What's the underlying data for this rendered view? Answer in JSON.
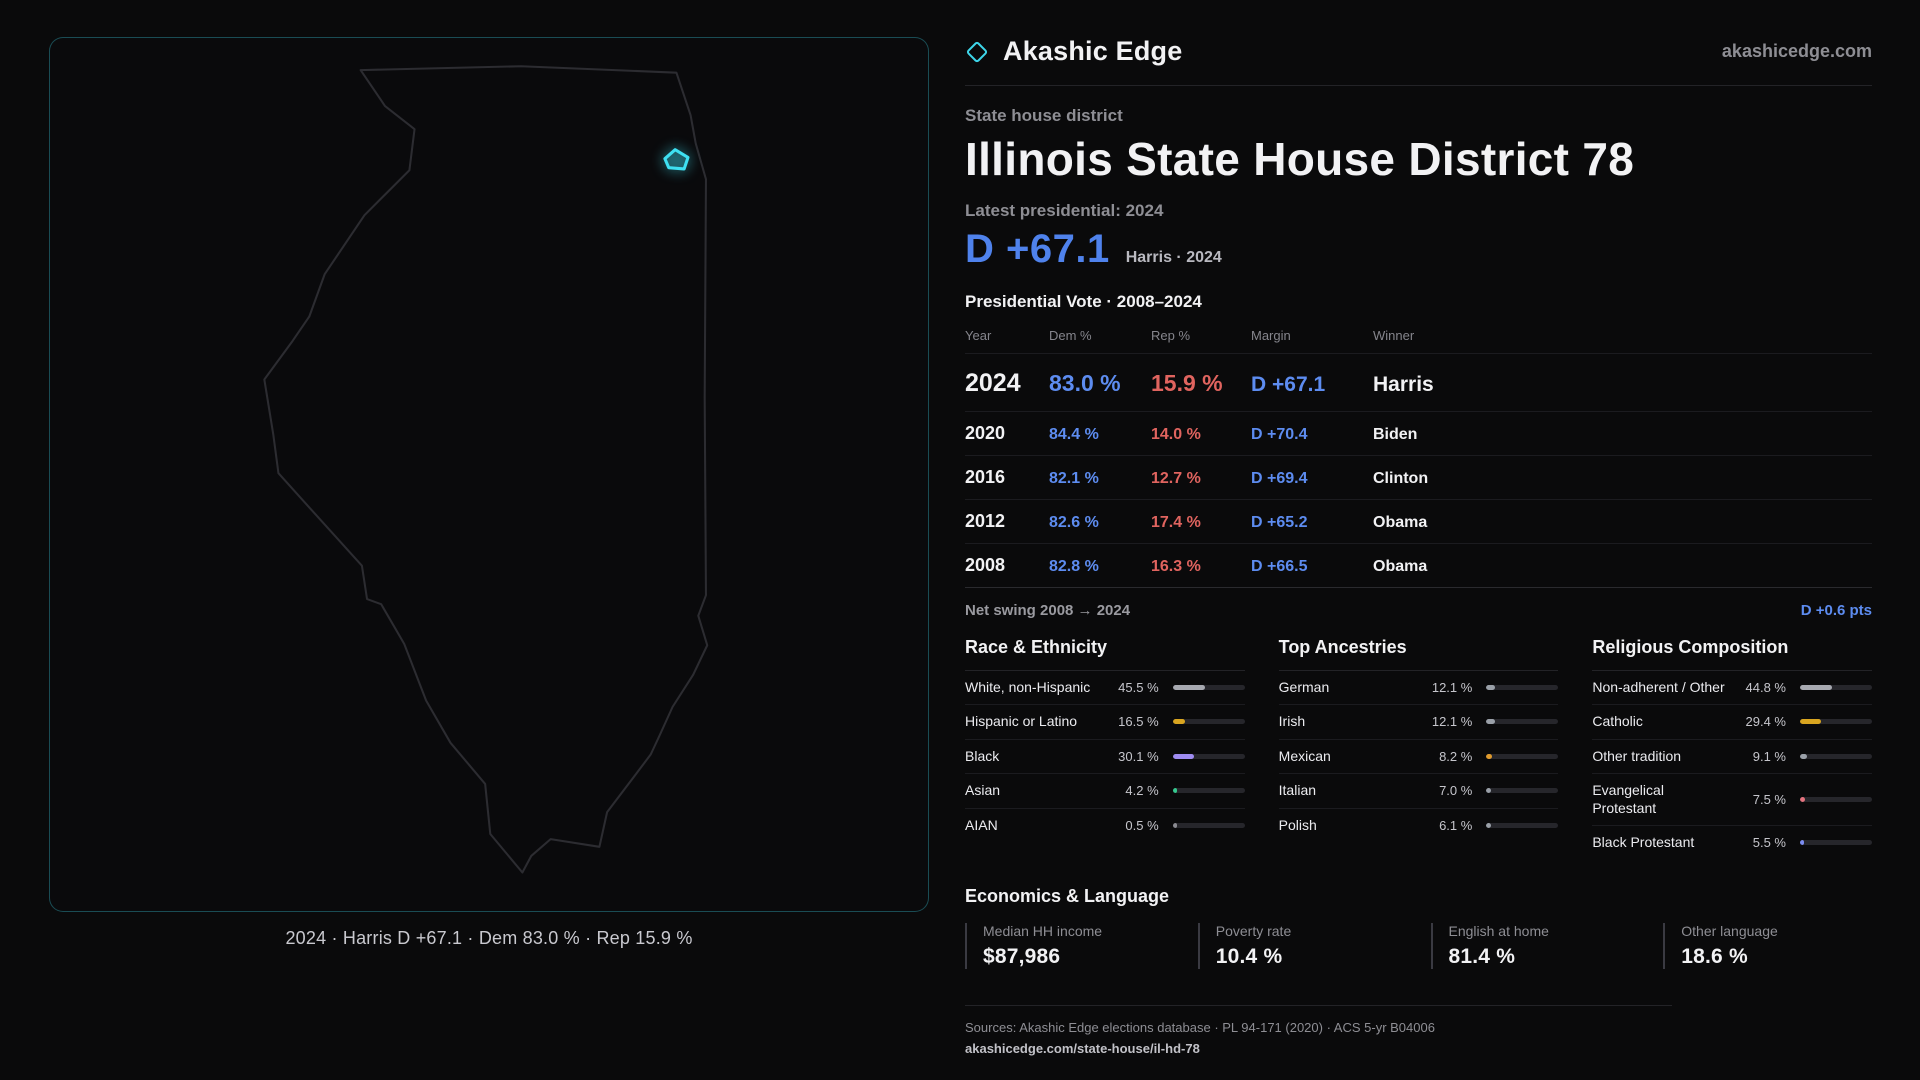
{
  "brand": {
    "name": "Akashic Edge",
    "site": "akashicedge.com"
  },
  "map": {
    "caption": "2024 · Harris D +67.1 · Dem 83.0 % · Rep 15.9 %",
    "highlight_name": "district-78-highlight"
  },
  "page": {
    "eyebrow": "State house district",
    "title": "Illinois State House District 78",
    "latest_label": "Latest presidential: 2024",
    "margin_big": "D +67.1",
    "margin_context": "Harris · 2024",
    "table_title": "Presidential Vote · 2008–2024"
  },
  "vote_table": {
    "columns": [
      "Year",
      "Dem %",
      "Rep %",
      "Margin",
      "Winner"
    ],
    "rows": [
      {
        "year": "2024",
        "dem": "83.0 %",
        "rep": "15.9 %",
        "margin": "D +67.1",
        "winner": "Harris",
        "featured": true
      },
      {
        "year": "2020",
        "dem": "84.4 %",
        "rep": "14.0 %",
        "margin": "D +70.4",
        "winner": "Biden",
        "featured": false
      },
      {
        "year": "2016",
        "dem": "82.1 %",
        "rep": "12.7 %",
        "margin": "D +69.4",
        "winner": "Clinton",
        "featured": false
      },
      {
        "year": "2012",
        "dem": "82.6 %",
        "rep": "17.4 %",
        "margin": "D +65.2",
        "winner": "Obama",
        "featured": false
      },
      {
        "year": "2008",
        "dem": "82.8 %",
        "rep": "16.3 %",
        "margin": "D +66.5",
        "winner": "Obama",
        "featured": false
      }
    ]
  },
  "net_swing": {
    "label": "Net swing 2008 → 2024",
    "value": "D +0.6 pts"
  },
  "demographics": [
    {
      "title": "Race & Ethnicity",
      "rows": [
        {
          "label": "White, non-Hispanic",
          "value": "45.5 %",
          "pct": 45.5,
          "color": "#a7a9b0"
        },
        {
          "label": "Hispanic or Latino",
          "value": "16.5 %",
          "pct": 16.5,
          "color": "#d9a520"
        },
        {
          "label": "Black",
          "value": "30.1 %",
          "pct": 30.1,
          "color": "#9f8cf2"
        },
        {
          "label": "Asian",
          "value": "4.2 %",
          "pct": 4.2,
          "color": "#35c98e"
        },
        {
          "label": "AIAN",
          "value": "0.5 %",
          "pct": 0.5,
          "color": "#8a8a90"
        }
      ]
    },
    {
      "title": "Top Ancestries",
      "rows": [
        {
          "label": "German",
          "value": "12.1 %",
          "pct": 12.1,
          "color": "#9aa0a8"
        },
        {
          "label": "Irish",
          "value": "12.1 %",
          "pct": 12.1,
          "color": "#9aa0a8"
        },
        {
          "label": "Mexican",
          "value": "8.2 %",
          "pct": 8.2,
          "color": "#e09b2d"
        },
        {
          "label": "Italian",
          "value": "7.0 %",
          "pct": 7.0,
          "color": "#9aa0a8"
        },
        {
          "label": "Polish",
          "value": "6.1 %",
          "pct": 6.1,
          "color": "#9aa0a8"
        }
      ]
    },
    {
      "title": "Religious Composition",
      "rows": [
        {
          "label": "Non-adherent / Other",
          "value": "44.8 %",
          "pct": 44.8,
          "color": "#a7a9b0"
        },
        {
          "label": "Catholic",
          "value": "29.4 %",
          "pct": 29.4,
          "color": "#d9a520"
        },
        {
          "label": "Other tradition",
          "value": "9.1 %",
          "pct": 9.1,
          "color": "#9aa0a8"
        },
        {
          "label": "Evangelical Protestant",
          "value": "7.5 %",
          "pct": 7.5,
          "color": "#e4737e"
        },
        {
          "label": "Black Protestant",
          "value": "5.5 %",
          "pct": 5.5,
          "color": "#7b8cf0"
        }
      ]
    }
  ],
  "economics": {
    "title": "Economics & Language",
    "stats": [
      {
        "label": "Median HH income",
        "value": "$87,986"
      },
      {
        "label": "Poverty rate",
        "value": "10.4 %"
      },
      {
        "label": "English at home",
        "value": "81.4 %"
      },
      {
        "label": "Other language",
        "value": "18.6 %"
      }
    ]
  },
  "footer": {
    "sources": "Sources: Akashic Edge elections database · PL 94-171 (2020) · ACS 5-yr B04006",
    "link": "akashicedge.com/state-house/il-hd-78"
  },
  "colors": {
    "dem": "#5d8cf0",
    "dem_big": "#4f82ec",
    "rep": "#e0645f",
    "accent": "#3ed6ea"
  }
}
